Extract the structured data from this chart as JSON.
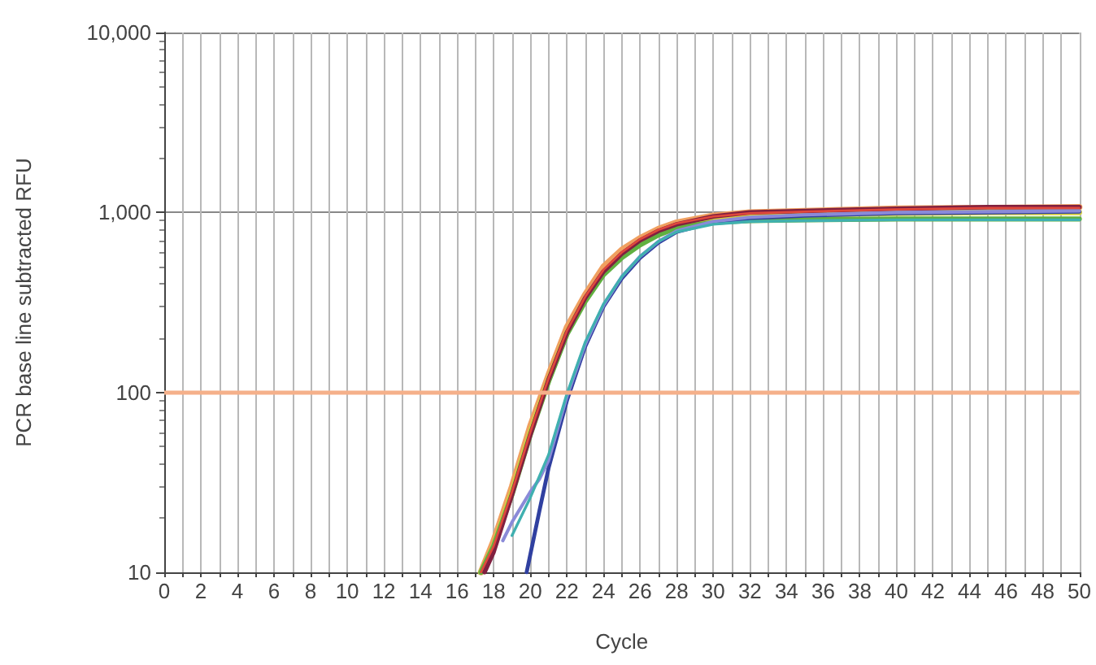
{
  "chart_data": {
    "type": "line",
    "xlabel": "Cycle",
    "ylabel": "PCR base line subtracted RFU",
    "log": "y",
    "grid": true,
    "marker": "none",
    "line_style": "solid",
    "xlim": [
      0,
      50
    ],
    "xticks": [
      0,
      {
        "value": 1,
        "label": null
      },
      2,
      {
        "value": 3,
        "label": null
      },
      4,
      {
        "value": 5,
        "label": null
      },
      6,
      {
        "value": 7,
        "label": null
      },
      8,
      {
        "value": 9,
        "label": null
      },
      10,
      {
        "value": 11,
        "label": null
      },
      12,
      {
        "value": 13,
        "label": null
      },
      14,
      {
        "value": 15,
        "label": null
      },
      16,
      {
        "value": 17,
        "label": null
      },
      18,
      {
        "value": 19,
        "label": null
      },
      20,
      {
        "value": 21,
        "label": null
      },
      22,
      {
        "value": 23,
        "label": null
      },
      24,
      {
        "value": 25,
        "label": null
      },
      26,
      {
        "value": 27,
        "label": null
      },
      28,
      {
        "value": 29,
        "label": null
      },
      30,
      {
        "value": 31,
        "label": null
      },
      32,
      {
        "value": 33,
        "label": null
      },
      34,
      {
        "value": 35,
        "label": null
      },
      36,
      {
        "value": 37,
        "label": null
      },
      38,
      {
        "value": 39,
        "label": null
      },
      40,
      {
        "value": 41,
        "label": null
      },
      42,
      {
        "value": 43,
        "label": null
      },
      44,
      {
        "value": 45,
        "label": null
      },
      46,
      {
        "value": 47,
        "label": null
      },
      48,
      {
        "value": 49,
        "label": null
      },
      50
    ],
    "ylim": [
      10,
      10000
    ],
    "yticks": [
      10,
      100,
      {
        "value": 1000,
        "label": "1,000"
      },
      {
        "value": 10000,
        "label": "10,000"
      }
    ],
    "ref_lines": [
      {
        "axis": "y",
        "value": 100,
        "label": null,
        "color": "#f5b08a"
      }
    ],
    "x": [
      17.3,
      18,
      19,
      20,
      21,
      22,
      23,
      24,
      25,
      26,
      27,
      28,
      30,
      32,
      35,
      40,
      45,
      50
    ],
    "series": [
      {
        "color": "#f0a060",
        "values": [
          10,
          15,
          30,
          65,
          125,
          230,
          350,
          500,
          620,
          720,
          810,
          880,
          960,
          1000,
          1020,
          1050,
          1060,
          1070
        ]
      },
      {
        "color": "#d8d040",
        "values": [
          10,
          14,
          28,
          60,
          118,
          215,
          330,
          460,
          580,
          680,
          770,
          840,
          920,
          950,
          970,
          990,
          1000,
          1000
        ]
      },
      {
        "color": "#60b040",
        "values": [
          10,
          14,
          27,
          58,
          115,
          210,
          320,
          450,
          560,
          660,
          750,
          820,
          880,
          900,
          910,
          920,
          920,
          920
        ]
      },
      {
        "color": "#802040",
        "x": [
          17.5,
          18,
          19,
          20,
          21,
          22,
          23,
          24,
          25,
          26,
          27,
          28,
          30,
          32,
          35,
          40,
          45,
          50
        ],
        "values": [
          10,
          13,
          27,
          58,
          118,
          215,
          335,
          470,
          590,
          700,
          790,
          860,
          950,
          1000,
          1020,
          1050,
          1070,
          1070
        ]
      },
      {
        "color": "#3040a0",
        "x": [
          19.8,
          20.5,
          21,
          22,
          23,
          24,
          25,
          26,
          27,
          28,
          30,
          32,
          35,
          40,
          45,
          50
        ],
        "values": [
          10,
          22,
          38,
          90,
          180,
          300,
          430,
          560,
          680,
          780,
          880,
          930,
          960,
          990,
          1000,
          1010
        ]
      },
      {
        "color": "#8a8ad8",
        "x": [
          18.5,
          19,
          20,
          20.5,
          21,
          22,
          23,
          24,
          25,
          26,
          27,
          28,
          30,
          32,
          35,
          40,
          45,
          50
        ],
        "values": [
          15,
          19,
          28,
          33,
          42,
          95,
          185,
          305,
          440,
          570,
          690,
          790,
          890,
          940,
          970,
          1000,
          1010,
          1020
        ]
      },
      {
        "color": "#40b0b0",
        "x": [
          19,
          20,
          21,
          22,
          23,
          24,
          25,
          26,
          27,
          28,
          30,
          32,
          35,
          40,
          45,
          50
        ],
        "values": [
          16,
          26,
          45,
          98,
          190,
          310,
          440,
          570,
          690,
          780,
          860,
          890,
          900,
          910,
          910,
          910
        ]
      },
      {
        "color": "#e0483c",
        "values": [
          10,
          14,
          28,
          60,
          120,
          220,
          340,
          480,
          600,
          710,
          800,
          870,
          950,
          990,
          1010,
          1040,
          1060,
          1060
        ]
      }
    ]
  }
}
